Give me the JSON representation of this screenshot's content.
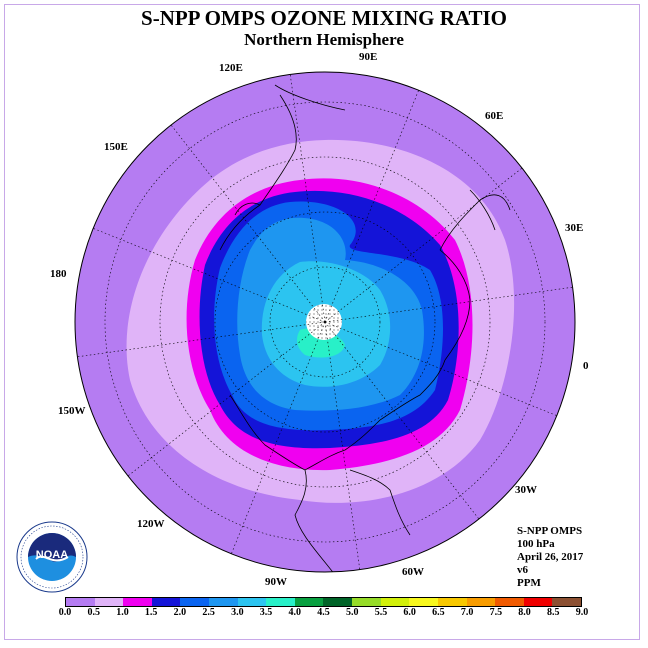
{
  "title": "S-NPP OMPS OZONE MIXING RATIO",
  "subtitle": "Northern Hemisphere",
  "longitude_labels": {
    "lon_90e": "90E",
    "lon_60e": "60E",
    "lon_30e": "30E",
    "lon_0": "0",
    "lon_30w": "30W",
    "lon_60w": "60W",
    "lon_90w": "90W",
    "lon_120w": "120W",
    "lon_150w": "150W",
    "lon_180": "180",
    "lon_150e": "150E",
    "lon_120e": "120E"
  },
  "info": {
    "instrument": "S-NPP OMPS",
    "level": "100 hPa",
    "date": "April 26, 2017",
    "version": "v6",
    "units": "PPM"
  },
  "logo": {
    "text": "NOAA",
    "ring_text": "NATIONAL OCEANIC AND ATMOSPHERIC ADMINISTRATION · U.S. DEPARTMENT OF COMMERCE"
  },
  "colorbar": {
    "ticks": [
      "0.0",
      "0.5",
      "1.0",
      "1.5",
      "2.0",
      "2.5",
      "3.0",
      "3.5",
      "4.0",
      "4.5",
      "5.0",
      "5.5",
      "6.0",
      "6.5",
      "7.0",
      "7.5",
      "8.0",
      "8.5",
      "9.0"
    ],
    "colors": [
      "#b57cf2",
      "#e0b4f8",
      "#f000f0",
      "#1414d8",
      "#0a64f0",
      "#1e96f0",
      "#2cc4f0",
      "#28f0c8",
      "#08a040",
      "#006428",
      "#96dc28",
      "#d2f00a",
      "#f8f81e",
      "#f8c800",
      "#f89c00",
      "#f05a00",
      "#f00000",
      "#8c5032"
    ]
  }
}
